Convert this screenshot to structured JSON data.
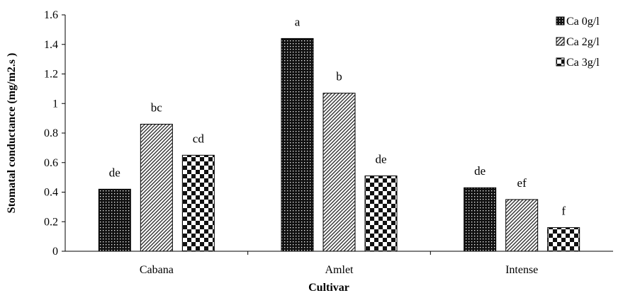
{
  "chart_data": {
    "type": "bar",
    "title": "",
    "xlabel": "Cultivar",
    "ylabel": "Stomatal conductance (mg/m2.s )",
    "ylim": [
      0,
      1.6
    ],
    "yticks": [
      "0",
      "0.2",
      "0.4",
      "0.6",
      "0.8",
      "1",
      "1.2",
      "1.4",
      "1.6"
    ],
    "categories": [
      "Cabana",
      "Amlet",
      "Intense"
    ],
    "series": [
      {
        "name": "Ca 0g/l",
        "values": [
          0.42,
          1.44,
          0.43
        ],
        "labels": [
          "de",
          "a",
          "de"
        ]
      },
      {
        "name": "Ca 2g/l",
        "values": [
          0.86,
          1.07,
          0.35
        ],
        "labels": [
          "bc",
          "b",
          "ef"
        ]
      },
      {
        "name": "Ca 3g/l",
        "values": [
          0.65,
          0.51,
          0.16
        ],
        "labels": [
          "cd",
          "de",
          "f"
        ]
      }
    ],
    "legend_position": "top-right",
    "grid": false
  }
}
